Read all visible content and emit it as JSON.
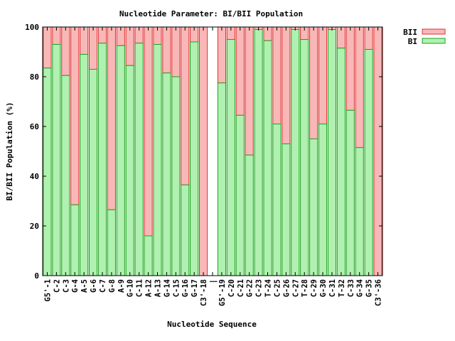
{
  "chart_data": {
    "type": "bar",
    "stacked": true,
    "title": "Nucleotide Parameter: BI/BII Population",
    "xlabel": "Nucleotide Sequence",
    "ylabel": "BI/BII Population (%)",
    "ylim": [
      0,
      100
    ],
    "yticks": [
      0,
      20,
      40,
      60,
      80,
      100
    ],
    "grid": false,
    "legend_position": "top-right",
    "categories": [
      "G5'-1",
      "C-2",
      "C-3",
      "G-4",
      "A-5",
      "G-6",
      "C-7",
      "G-8",
      "A-9",
      "G-10",
      "C-11",
      "A-12",
      "A-13",
      "G-14",
      "C-15",
      "G-16",
      "G-17",
      "C3'-18",
      "|",
      "G5'-19",
      "C-20",
      "C-21",
      "G-22",
      "C-23",
      "T-24",
      "C-25",
      "G-26",
      "C-27",
      "T-28",
      "C-29",
      "G-30",
      "C-31",
      "T-32",
      "C-33",
      "G-34",
      "G-35",
      "C3'-36"
    ],
    "series": [
      {
        "name": "BII",
        "color": "#f8b8b8",
        "edge_color": "#e03030",
        "values": [
          16.5,
          7,
          19.5,
          71.5,
          11,
          17,
          6.5,
          73.5,
          7.5,
          15.5,
          6.5,
          84,
          7,
          18.5,
          20,
          63.5,
          6,
          100,
          null,
          22.5,
          5,
          35.5,
          51.5,
          1,
          5.5,
          39,
          47,
          1,
          5,
          45,
          39,
          1,
          8.5,
          33.5,
          48.5,
          9,
          100
        ]
      },
      {
        "name": "BI",
        "color": "#b0f0b0",
        "edge_color": "#20a020",
        "values": [
          83.5,
          93,
          80.5,
          28.5,
          89,
          83,
          93.5,
          26.5,
          92.5,
          84.5,
          93.5,
          16,
          93,
          81.5,
          80,
          36.5,
          94,
          0,
          null,
          77.5,
          95,
          64.5,
          48.5,
          99,
          94.5,
          61,
          53,
          99,
          95,
          55,
          61,
          99,
          91.5,
          66.5,
          51.5,
          91,
          0
        ]
      }
    ]
  }
}
